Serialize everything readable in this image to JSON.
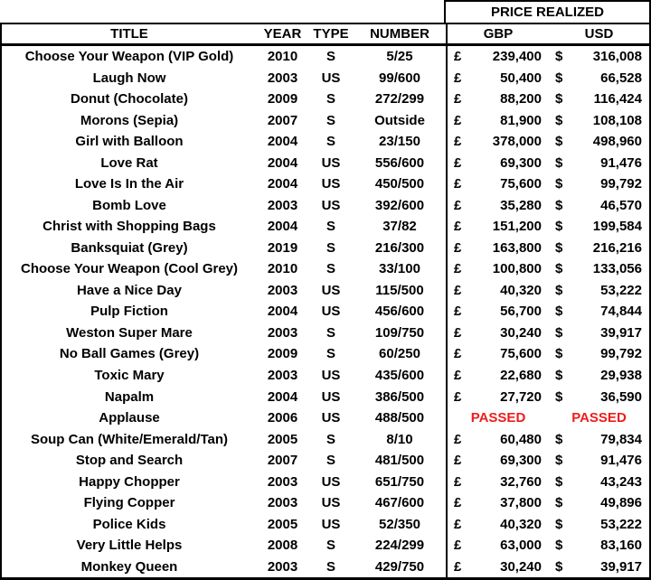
{
  "chart_data": {
    "type": "table",
    "price_realized_header": "PRICE REALIZED",
    "columns": [
      "TITLE",
      "YEAR",
      "TYPE",
      "NUMBER",
      "GBP",
      "USD"
    ],
    "gbp_symbol": "£",
    "usd_symbol": "$",
    "passed_label": "PASSED",
    "rows": [
      {
        "title": "Choose Your Weapon (VIP Gold)",
        "year": "2010",
        "type": "S",
        "number": "5/25",
        "gbp": "239,400",
        "usd": "316,008",
        "passed": false
      },
      {
        "title": "Laugh Now",
        "year": "2003",
        "type": "US",
        "number": "99/600",
        "gbp": "50,400",
        "usd": "66,528",
        "passed": false
      },
      {
        "title": "Donut (Chocolate)",
        "year": "2009",
        "type": "S",
        "number": "272/299",
        "gbp": "88,200",
        "usd": "116,424",
        "passed": false
      },
      {
        "title": "Morons (Sepia)",
        "year": "2007",
        "type": "S",
        "number": "Outside",
        "gbp": "81,900",
        "usd": "108,108",
        "passed": false
      },
      {
        "title": "Girl with Balloon",
        "year": "2004",
        "type": "S",
        "number": "23/150",
        "gbp": "378,000",
        "usd": "498,960",
        "passed": false
      },
      {
        "title": "Love Rat",
        "year": "2004",
        "type": "US",
        "number": "556/600",
        "gbp": "69,300",
        "usd": "91,476",
        "passed": false
      },
      {
        "title": "Love Is In the Air",
        "year": "2004",
        "type": "US",
        "number": "450/500",
        "gbp": "75,600",
        "usd": "99,792",
        "passed": false
      },
      {
        "title": "Bomb Love",
        "year": "2003",
        "type": "US",
        "number": "392/600",
        "gbp": "35,280",
        "usd": "46,570",
        "passed": false
      },
      {
        "title": "Christ with Shopping Bags",
        "year": "2004",
        "type": "S",
        "number": "37/82",
        "gbp": "151,200",
        "usd": "199,584",
        "passed": false
      },
      {
        "title": "Banksquiat (Grey)",
        "year": "2019",
        "type": "S",
        "number": "216/300",
        "gbp": "163,800",
        "usd": "216,216",
        "passed": false
      },
      {
        "title": "Choose Your Weapon (Cool Grey)",
        "year": "2010",
        "type": "S",
        "number": "33/100",
        "gbp": "100,800",
        "usd": "133,056",
        "passed": false
      },
      {
        "title": "Have a Nice Day",
        "year": "2003",
        "type": "US",
        "number": "115/500",
        "gbp": "40,320",
        "usd": "53,222",
        "passed": false
      },
      {
        "title": "Pulp Fiction",
        "year": "2004",
        "type": "US",
        "number": "456/600",
        "gbp": "56,700",
        "usd": "74,844",
        "passed": false
      },
      {
        "title": "Weston Super Mare",
        "year": "2003",
        "type": "S",
        "number": "109/750",
        "gbp": "30,240",
        "usd": "39,917",
        "passed": false
      },
      {
        "title": "No Ball Games (Grey)",
        "year": "2009",
        "type": "S",
        "number": "60/250",
        "gbp": "75,600",
        "usd": "99,792",
        "passed": false
      },
      {
        "title": "Toxic Mary",
        "year": "2003",
        "type": "US",
        "number": "435/600",
        "gbp": "22,680",
        "usd": "29,938",
        "passed": false
      },
      {
        "title": "Napalm",
        "year": "2004",
        "type": "US",
        "number": "386/500",
        "gbp": "27,720",
        "usd": "36,590",
        "passed": false
      },
      {
        "title": "Applause",
        "year": "2006",
        "type": "US",
        "number": "488/500",
        "gbp": "",
        "usd": "",
        "passed": true
      },
      {
        "title": "Soup Can (White/Emerald/Tan)",
        "year": "2005",
        "type": "S",
        "number": "8/10",
        "gbp": "60,480",
        "usd": "79,834",
        "passed": false
      },
      {
        "title": "Stop and Search",
        "year": "2007",
        "type": "S",
        "number": "481/500",
        "gbp": "69,300",
        "usd": "91,476",
        "passed": false
      },
      {
        "title": "Happy Chopper",
        "year": "2003",
        "type": "US",
        "number": "651/750",
        "gbp": "32,760",
        "usd": "43,243",
        "passed": false
      },
      {
        "title": "Flying Copper",
        "year": "2003",
        "type": "US",
        "number": "467/600",
        "gbp": "37,800",
        "usd": "49,896",
        "passed": false
      },
      {
        "title": "Police Kids",
        "year": "2005",
        "type": "US",
        "number": "52/350",
        "gbp": "40,320",
        "usd": "53,222",
        "passed": false
      },
      {
        "title": "Very Little Helps",
        "year": "2008",
        "type": "S",
        "number": "224/299",
        "gbp": "63,000",
        "usd": "83,160",
        "passed": false
      },
      {
        "title": "Monkey Queen",
        "year": "2003",
        "type": "S",
        "number": "429/750",
        "gbp": "30,240",
        "usd": "39,917",
        "passed": false
      }
    ]
  },
  "colors": {
    "passed_red": "#ee1c1c",
    "border": "#000000",
    "text": "#000000",
    "background": "#ffffff"
  }
}
